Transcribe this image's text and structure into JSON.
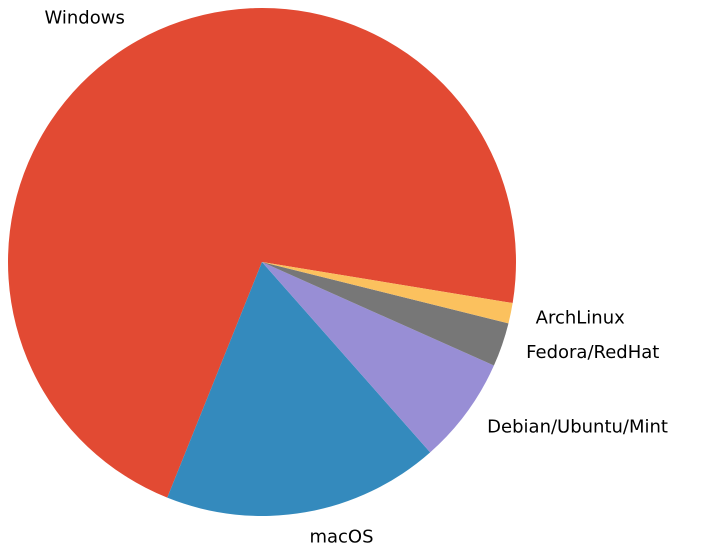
{
  "chart_data": {
    "type": "pie",
    "categories": [
      "Windows",
      "macOS",
      "Debian/Ubuntu/Mint",
      "Fedora/RedHat",
      "ArchLinux"
    ],
    "values": [
      71.5,
      17.6,
      6.8,
      2.8,
      1.3
    ],
    "colors": [
      "#E24A33",
      "#348ABD",
      "#988ED5",
      "#777777",
      "#FBC15E"
    ]
  }
}
